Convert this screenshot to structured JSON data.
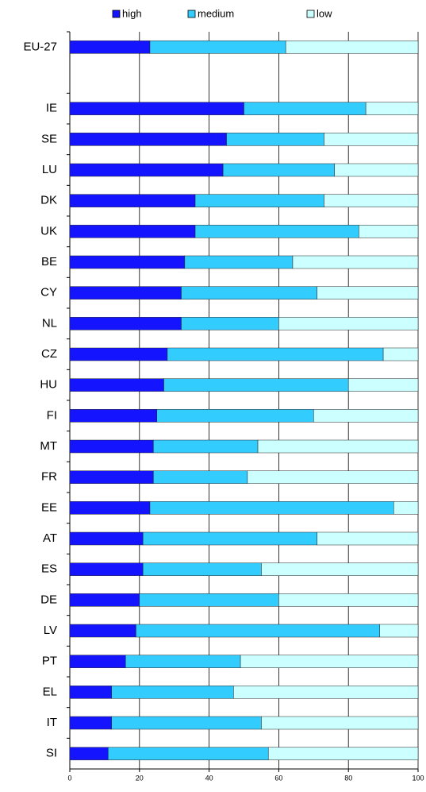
{
  "chart_data": {
    "type": "stacked-bar-horizontal",
    "categories": [
      "EU-27",
      null,
      "IE",
      "SE",
      "LU",
      "DK",
      "UK",
      "BE",
      "CY",
      "NL",
      "CZ",
      "HU",
      "FI",
      "MT",
      "FR",
      "EE",
      "AT",
      "ES",
      "DE",
      "LV",
      "PT",
      "EL",
      "IT",
      "SI"
    ],
    "series": [
      {
        "name": "high",
        "color": "#1414ff",
        "values": [
          23,
          null,
          50,
          45,
          44,
          36,
          36,
          33,
          32,
          32,
          28,
          27,
          25,
          24,
          24,
          23,
          21,
          21,
          20,
          19,
          16,
          12,
          12,
          11
        ]
      },
      {
        "name": "medium",
        "color": "#33ccff",
        "values": [
          39,
          null,
          35,
          28,
          32,
          37,
          47,
          31,
          39,
          28,
          62,
          53,
          45,
          30,
          27,
          70,
          50,
          34,
          40,
          70,
          33,
          35,
          43,
          46
        ]
      },
      {
        "name": "low",
        "color": "#ccffff",
        "values": [
          38,
          null,
          15,
          27,
          24,
          27,
          17,
          36,
          29,
          40,
          10,
          20,
          30,
          46,
          49,
          7,
          29,
          45,
          40,
          11,
          51,
          53,
          45,
          43
        ]
      }
    ],
    "xlim": [
      0,
      100
    ],
    "xticks": [
      0,
      20,
      40,
      60,
      80,
      100
    ],
    "grid": true,
    "legend": "top"
  }
}
